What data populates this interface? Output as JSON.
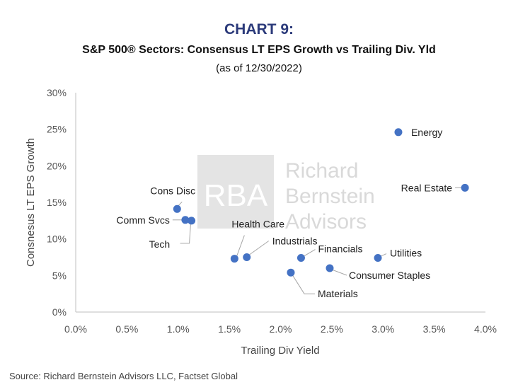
{
  "header": {
    "title": "CHART 9:",
    "subtitle": "S&P 500® Sectors: Consensus LT EPS Growth vs Trailing Div. Yld",
    "date": "(as of 12/30/2022)"
  },
  "watermark": {
    "logo_text": "RBA",
    "lines": [
      "Richard",
      "Bernstein",
      "Advisors"
    ]
  },
  "source": "Source: Richard Bernstein Advisors LLC, Factset Global",
  "colors": {
    "title": "#2b3a7a",
    "marker": "#4472c4",
    "axis": "#bfbfbf",
    "watermark": "#d9d9d9"
  },
  "chart_data": {
    "type": "scatter",
    "title": "CHART 9:",
    "subtitle": "S&P 500® Sectors: Consensus LT EPS Growth vs Trailing Div. Yld",
    "xlabel": "Trailing Div Yield",
    "ylabel": "Consnesus LT EPS Growth",
    "xlim": [
      0,
      4.0
    ],
    "ylim": [
      0,
      30
    ],
    "x_ticks": [
      0,
      0.5,
      1.0,
      1.5,
      2.0,
      2.5,
      3.0,
      3.5,
      4.0
    ],
    "y_ticks": [
      0,
      5,
      10,
      15,
      20,
      25,
      30
    ],
    "x_tick_labels": [
      "0.0%",
      "0.5%",
      "1.0%",
      "1.5%",
      "2.0%",
      "2.5%",
      "3.0%",
      "3.5%",
      "4.0%"
    ],
    "y_tick_labels": [
      "0%",
      "5%",
      "10%",
      "15%",
      "20%",
      "25%",
      "30%"
    ],
    "grid": false,
    "points": [
      {
        "label": "Energy",
        "x": 3.15,
        "y": 24.6
      },
      {
        "label": "Real Estate",
        "x": 3.8,
        "y": 17.0
      },
      {
        "label": "Cons Disc",
        "x": 0.99,
        "y": 14.1
      },
      {
        "label": "Comm Svcs",
        "x": 1.07,
        "y": 12.6
      },
      {
        "label": "Tech",
        "x": 1.13,
        "y": 12.5
      },
      {
        "label": "Health Care",
        "x": 1.55,
        "y": 7.3
      },
      {
        "label": "Industrials",
        "x": 1.67,
        "y": 7.5
      },
      {
        "label": "Financials",
        "x": 2.2,
        "y": 7.4
      },
      {
        "label": "Utilities",
        "x": 2.95,
        "y": 7.4
      },
      {
        "label": "Consumer Staples",
        "x": 2.48,
        "y": 6.0
      },
      {
        "label": "Materials",
        "x": 2.1,
        "y": 5.4
      }
    ]
  }
}
